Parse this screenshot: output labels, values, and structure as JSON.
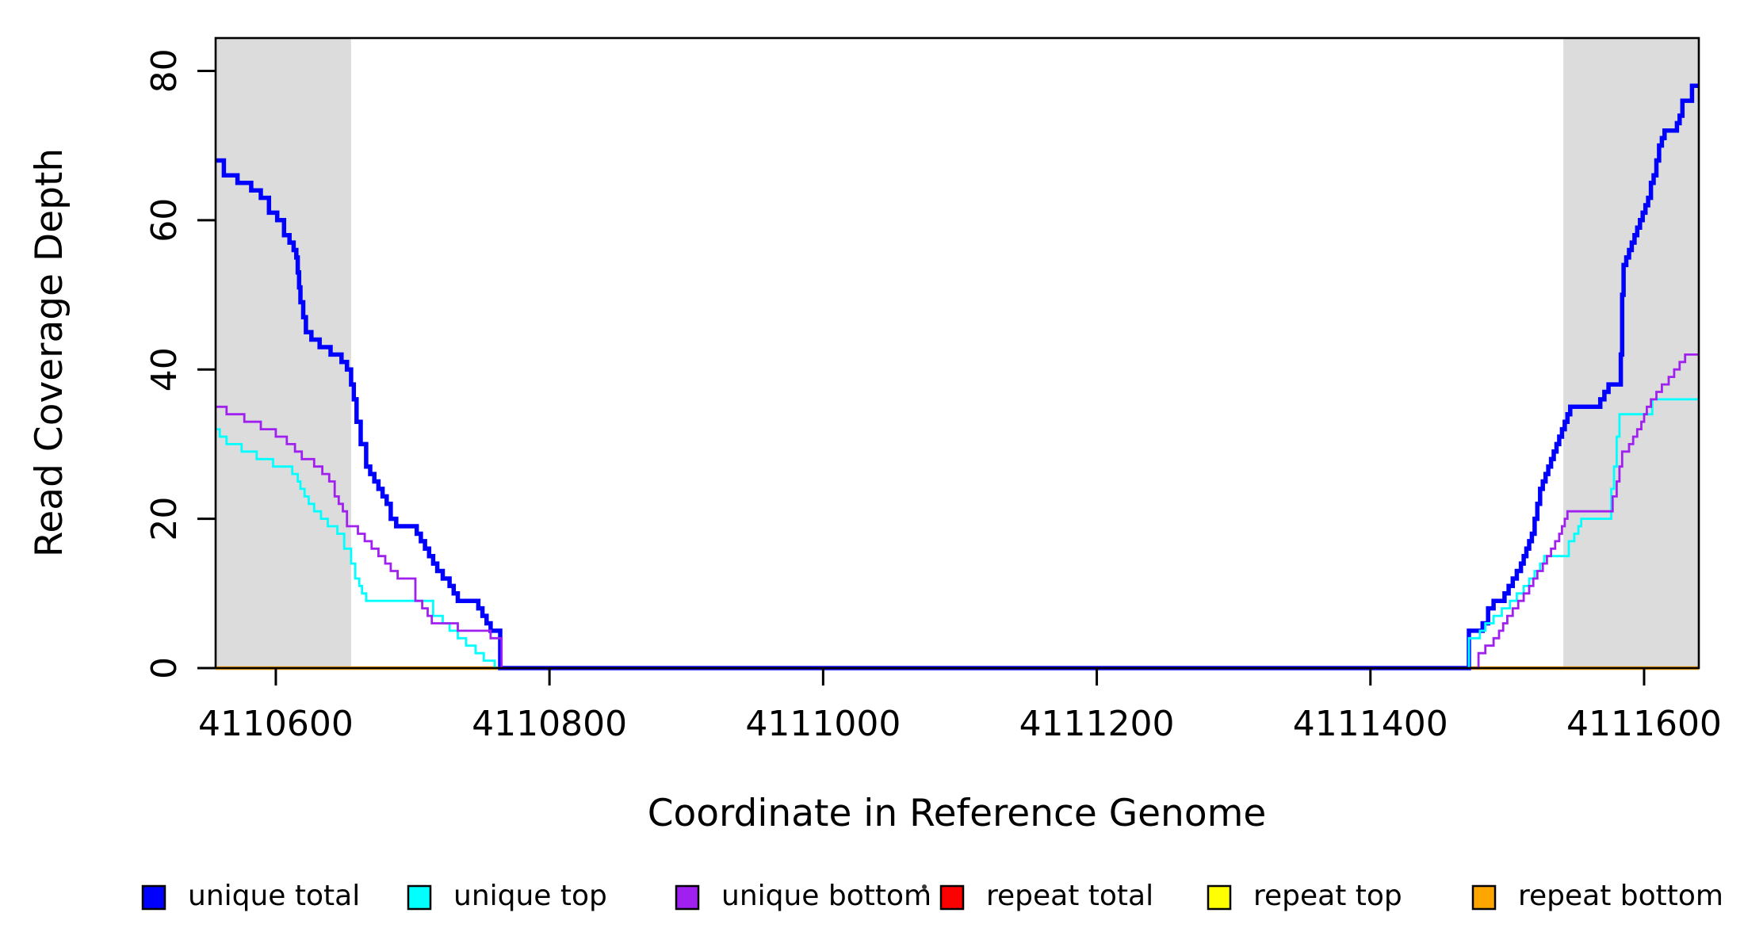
{
  "chart_data": {
    "type": "line",
    "interpolation": "step-after",
    "title": "",
    "xlabel": "Coordinate in Reference Genome",
    "ylabel": "Read Coverage Depth",
    "xlim": [
      4110556,
      4111640
    ],
    "ylim": [
      0,
      84.4
    ],
    "grid": false,
    "x_ticks": [
      4110600,
      4110800,
      4111000,
      4111200,
      4111400,
      4111600
    ],
    "y_ticks": [
      0,
      20,
      40,
      60,
      80
    ],
    "shaded_regions": [
      {
        "name": "left-repeat-band",
        "x0": 4110556,
        "x1": 4110655,
        "color": "#dcdcdc"
      },
      {
        "name": "right-repeat-band",
        "x0": 4111541,
        "x1": 4111640,
        "color": "#dcdcdc"
      }
    ],
    "series": [
      {
        "name": "repeat total",
        "color": "#ff0000",
        "width": 2.8,
        "points": [
          [
            4110556,
            0
          ],
          [
            4111640,
            0
          ]
        ]
      },
      {
        "name": "repeat top",
        "color": "#ffff00",
        "width": 2.8,
        "points": [
          [
            4110556,
            0
          ],
          [
            4111640,
            0
          ]
        ]
      },
      {
        "name": "repeat bottom",
        "color": "#ffa500",
        "width": 4.5,
        "points": [
          [
            4110556,
            0
          ],
          [
            4111640,
            0
          ]
        ]
      },
      {
        "name": "unique total",
        "color": "#0000ff",
        "width": 5.5,
        "points": [
          [
            4110556,
            68
          ],
          [
            4110562,
            66
          ],
          [
            4110572,
            65
          ],
          [
            4110582,
            64
          ],
          [
            4110589,
            63
          ],
          [
            4110595,
            61
          ],
          [
            4110601,
            60
          ],
          [
            4110606,
            58
          ],
          [
            4110610,
            57
          ],
          [
            4110613,
            56
          ],
          [
            4110615,
            55
          ],
          [
            4110616,
            53
          ],
          [
            4110617,
            51
          ],
          [
            4110618,
            49
          ],
          [
            4110620,
            47
          ],
          [
            4110622,
            45
          ],
          [
            4110626,
            44
          ],
          [
            4110632,
            43
          ],
          [
            4110640,
            42
          ],
          [
            4110648,
            41
          ],
          [
            4110652,
            40
          ],
          [
            4110655,
            38
          ],
          [
            4110657,
            36
          ],
          [
            4110659,
            33
          ],
          [
            4110662,
            30
          ],
          [
            4110666,
            27
          ],
          [
            4110669,
            26
          ],
          [
            4110672,
            25
          ],
          [
            4110675,
            24
          ],
          [
            4110678,
            23
          ],
          [
            4110681,
            22
          ],
          [
            4110684,
            20
          ],
          [
            4110688,
            19
          ],
          [
            4110703,
            18
          ],
          [
            4110706,
            17
          ],
          [
            4110709,
            16
          ],
          [
            4110712,
            15
          ],
          [
            4110715,
            14
          ],
          [
            4110718,
            13
          ],
          [
            4110722,
            12
          ],
          [
            4110727,
            11
          ],
          [
            4110730,
            10
          ],
          [
            4110733,
            9
          ],
          [
            4110748,
            8
          ],
          [
            4110751,
            7
          ],
          [
            4110754,
            6
          ],
          [
            4110757,
            5
          ],
          [
            4110764,
            0
          ],
          [
            4111472,
            5
          ],
          [
            4111482,
            6
          ],
          [
            4111486,
            8
          ],
          [
            4111490,
            9
          ],
          [
            4111498,
            10
          ],
          [
            4111501,
            11
          ],
          [
            4111504,
            12
          ],
          [
            4111507,
            13
          ],
          [
            4111510,
            14
          ],
          [
            4111512,
            15
          ],
          [
            4111514,
            16
          ],
          [
            4111516,
            17
          ],
          [
            4111518,
            18
          ],
          [
            4111520,
            20
          ],
          [
            4111522,
            22
          ],
          [
            4111524,
            24
          ],
          [
            4111526,
            25
          ],
          [
            4111528,
            26
          ],
          [
            4111530,
            27
          ],
          [
            4111532,
            28
          ],
          [
            4111534,
            29
          ],
          [
            4111536,
            30
          ],
          [
            4111538,
            31
          ],
          [
            4111540,
            32
          ],
          [
            4111542,
            33
          ],
          [
            4111544,
            34
          ],
          [
            4111546,
            35
          ],
          [
            4111568,
            36
          ],
          [
            4111571,
            37
          ],
          [
            4111574,
            38
          ],
          [
            4111583,
            42
          ],
          [
            4111584,
            50
          ],
          [
            4111585,
            54
          ],
          [
            4111587,
            55
          ],
          [
            4111589,
            56
          ],
          [
            4111591,
            57
          ],
          [
            4111593,
            58
          ],
          [
            4111595,
            59
          ],
          [
            4111597,
            60
          ],
          [
            4111599,
            61
          ],
          [
            4111601,
            62
          ],
          [
            4111603,
            63
          ],
          [
            4111605,
            65
          ],
          [
            4111607,
            66
          ],
          [
            4111609,
            68
          ],
          [
            4111611,
            70
          ],
          [
            4111613,
            71
          ],
          [
            4111615,
            72
          ],
          [
            4111624,
            73
          ],
          [
            4111626,
            74
          ],
          [
            4111628,
            76
          ],
          [
            4111635,
            78
          ],
          [
            4111640,
            78
          ]
        ]
      },
      {
        "name": "unique top",
        "color": "#00ffff",
        "width": 2.8,
        "points": [
          [
            4110556,
            32
          ],
          [
            4110559,
            31
          ],
          [
            4110564,
            30
          ],
          [
            4110575,
            29
          ],
          [
            4110586,
            28
          ],
          [
            4110598,
            27
          ],
          [
            4110612,
            26
          ],
          [
            4110616,
            25
          ],
          [
            4110618,
            24
          ],
          [
            4110621,
            23
          ],
          [
            4110624,
            22
          ],
          [
            4110628,
            21
          ],
          [
            4110633,
            20
          ],
          [
            4110638,
            19
          ],
          [
            4110645,
            18
          ],
          [
            4110650,
            16
          ],
          [
            4110655,
            14
          ],
          [
            4110658,
            12
          ],
          [
            4110661,
            11
          ],
          [
            4110663,
            10
          ],
          [
            4110666,
            9
          ],
          [
            4110715,
            7
          ],
          [
            4110722,
            6
          ],
          [
            4110727,
            5
          ],
          [
            4110733,
            4
          ],
          [
            4110739,
            3
          ],
          [
            4110746,
            2
          ],
          [
            4110752,
            1
          ],
          [
            4110760,
            0
          ],
          [
            4111472,
            4
          ],
          [
            4111480,
            5
          ],
          [
            4111484,
            6
          ],
          [
            4111490,
            7
          ],
          [
            4111496,
            8
          ],
          [
            4111502,
            9
          ],
          [
            4111507,
            10
          ],
          [
            4111512,
            11
          ],
          [
            4111516,
            12
          ],
          [
            4111520,
            13
          ],
          [
            4111524,
            14
          ],
          [
            4111527,
            15
          ],
          [
            4111545,
            17
          ],
          [
            4111549,
            18
          ],
          [
            4111552,
            19
          ],
          [
            4111554,
            20
          ],
          [
            4111576,
            24
          ],
          [
            4111578,
            27
          ],
          [
            4111580,
            31
          ],
          [
            4111582,
            34
          ],
          [
            4111606,
            36
          ],
          [
            4111640,
            36
          ]
        ]
      },
      {
        "name": "unique bottom",
        "color": "#a020f0",
        "width": 2.8,
        "points": [
          [
            4110556,
            35
          ],
          [
            4110564,
            34
          ],
          [
            4110577,
            33
          ],
          [
            4110589,
            32
          ],
          [
            4110600,
            31
          ],
          [
            4110608,
            30
          ],
          [
            4110614,
            29
          ],
          [
            4110619,
            28
          ],
          [
            4110628,
            27
          ],
          [
            4110634,
            26
          ],
          [
            4110639,
            25
          ],
          [
            4110643,
            23
          ],
          [
            4110646,
            22
          ],
          [
            4110649,
            21
          ],
          [
            4110652,
            19
          ],
          [
            4110660,
            18
          ],
          [
            4110665,
            17
          ],
          [
            4110670,
            16
          ],
          [
            4110675,
            15
          ],
          [
            4110680,
            14
          ],
          [
            4110684,
            13
          ],
          [
            4110689,
            12
          ],
          [
            4110702,
            9
          ],
          [
            4110707,
            8
          ],
          [
            4110711,
            7
          ],
          [
            4110714,
            6
          ],
          [
            4110733,
            5
          ],
          [
            4110757,
            4
          ],
          [
            4110765,
            0
          ],
          [
            4111479,
            2
          ],
          [
            4111484,
            3
          ],
          [
            4111490,
            4
          ],
          [
            4111494,
            5
          ],
          [
            4111497,
            6
          ],
          [
            4111500,
            7
          ],
          [
            4111504,
            8
          ],
          [
            4111508,
            9
          ],
          [
            4111512,
            10
          ],
          [
            4111516,
            11
          ],
          [
            4111519,
            12
          ],
          [
            4111522,
            13
          ],
          [
            4111526,
            14
          ],
          [
            4111529,
            15
          ],
          [
            4111532,
            16
          ],
          [
            4111535,
            17
          ],
          [
            4111538,
            18
          ],
          [
            4111540,
            19
          ],
          [
            4111542,
            20
          ],
          [
            4111544,
            21
          ],
          [
            4111577,
            23
          ],
          [
            4111580,
            25
          ],
          [
            4111582,
            27
          ],
          [
            4111584,
            29
          ],
          [
            4111589,
            30
          ],
          [
            4111592,
            31
          ],
          [
            4111595,
            32
          ],
          [
            4111598,
            33
          ],
          [
            4111600,
            34
          ],
          [
            4111602,
            35
          ],
          [
            4111605,
            36
          ],
          [
            4111609,
            37
          ],
          [
            4111613,
            38
          ],
          [
            4111618,
            39
          ],
          [
            4111622,
            40
          ],
          [
            4111626,
            41
          ],
          [
            4111630,
            42
          ],
          [
            4111640,
            42
          ]
        ]
      }
    ],
    "legend": [
      {
        "label": "unique total",
        "color": "#0000ff"
      },
      {
        "label": "unique top",
        "color": "#00ffff"
      },
      {
        "label": "unique bottom",
        "color": "#a020f0"
      },
      {
        "label": "repeat total",
        "color": "#ff0000"
      },
      {
        "label": "repeat top",
        "color": "#ffff00"
      },
      {
        "label": "repeat bottom",
        "color": "#ffa500"
      }
    ],
    "legend_position": "bottom"
  }
}
